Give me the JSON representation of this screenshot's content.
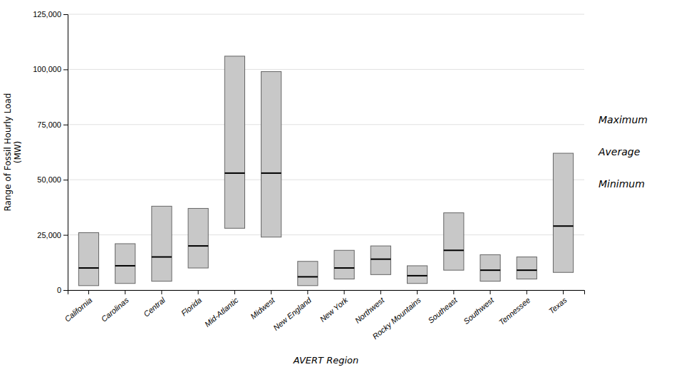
{
  "chart_data": {
    "type": "range",
    "categories": [
      "California",
      "Carolinas",
      "Central",
      "Florida",
      "Mid-Atlantic",
      "Midwest",
      "New England",
      "New York",
      "Northwest",
      "Rocky Mountains",
      "Southeast",
      "Southwest",
      "Tennessee",
      "Texas"
    ],
    "series": [
      {
        "name": "Maximum",
        "type": "bar",
        "values": [
          26000,
          21000,
          38000,
          37000,
          106000,
          99000,
          13000,
          18000,
          20000,
          11000,
          35000,
          16000,
          15000,
          62000
        ]
      },
      {
        "name": "Average",
        "type": "line",
        "color": "#000000",
        "values": [
          10000,
          11000,
          15000,
          20000,
          53000,
          53000,
          6000,
          10000,
          14000,
          6500,
          18000,
          9000,
          9000,
          29000
        ]
      },
      {
        "name": "Minimum",
        "type": "bar",
        "values": [
          2000,
          3000,
          4000,
          10000,
          28000,
          24000,
          2000,
          5000,
          7000,
          3000,
          9000,
          4000,
          5000,
          8000
        ]
      }
    ],
    "color": "#c8c8c8",
    "xlabel": "AVERT Region",
    "ylabel": "Range of Fossil Hourly Load\n(MW)",
    "ylim": [
      0,
      125000
    ],
    "yticks": [
      0,
      {
        "value": 25000,
        "label": "25,000"
      },
      {
        "value": 50000,
        "label": "50,000"
      },
      {
        "value": 75000,
        "label": "75,000"
      },
      {
        "value": 100000,
        "label": "100,000"
      },
      {
        "value": 125000,
        "label": "125,000"
      }
    ],
    "grid": true
  }
}
